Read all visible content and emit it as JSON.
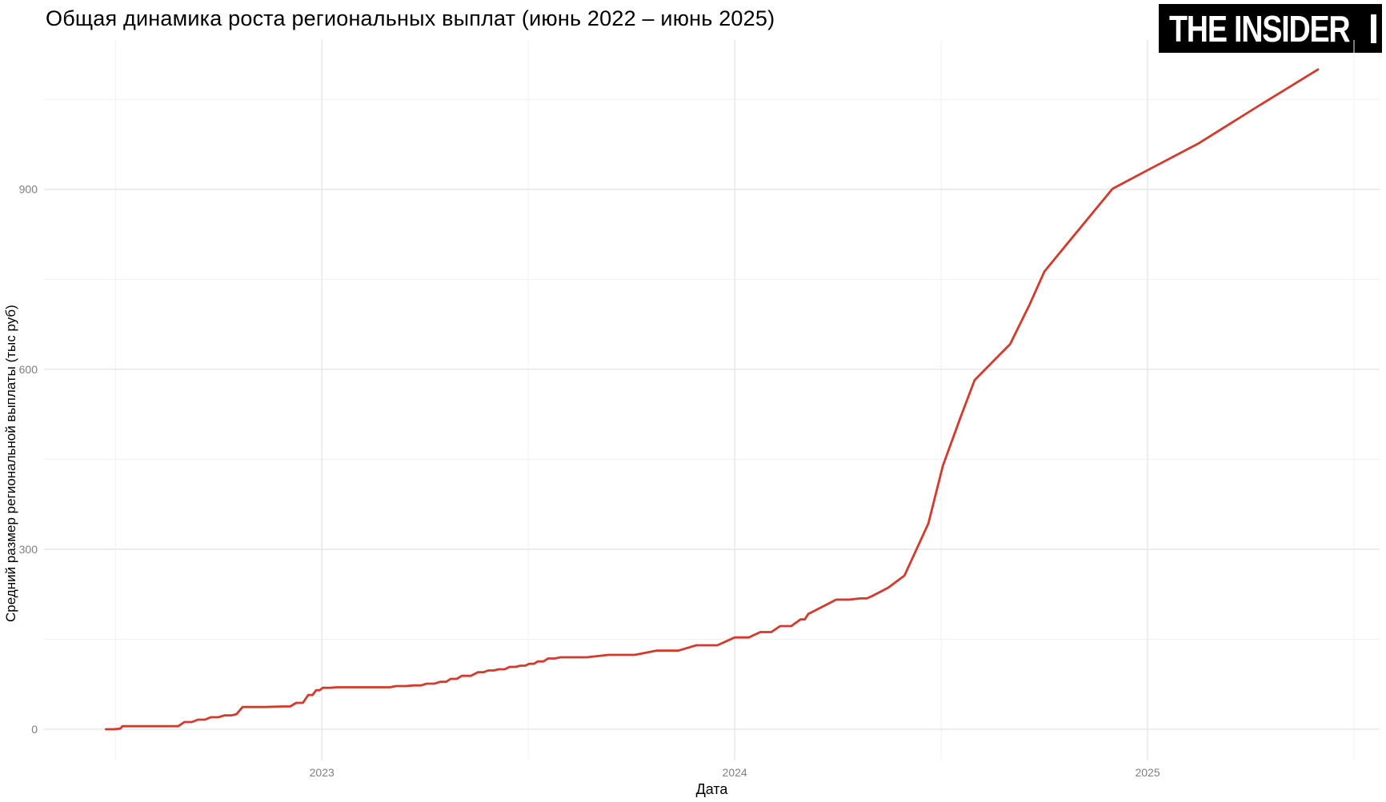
{
  "header": {
    "title": "Общая динамика роста региональных выплат (июнь 2022 – июнь 2025)",
    "logo": {
      "text": "THE INSIDER",
      "bg": "#000000",
      "fg": "#ffffff"
    }
  },
  "chart_data": {
    "type": "line",
    "title": "Общая динамика роста региональных выплат (июнь 2022 – июнь 2025)",
    "xlabel": "Дата",
    "ylabel": "Средний размер региональной выплаты (тыс руб)",
    "legend_position": "none",
    "grid": true,
    "x_range": [
      2022.327,
      2025.562
    ],
    "y_range": [
      -52,
      1149
    ],
    "x_ticks": [
      {
        "value": 2023,
        "label": "2023"
      },
      {
        "value": 2024,
        "label": "2024"
      },
      {
        "value": 2025,
        "label": "2025"
      }
    ],
    "x_minor_ticks": [
      2022.5,
      2023.5,
      2024.5,
      2025.5
    ],
    "y_ticks": [
      {
        "value": 0,
        "label": "0"
      },
      {
        "value": 300,
        "label": "300"
      },
      {
        "value": 600,
        "label": "600"
      },
      {
        "value": 900,
        "label": "900"
      }
    ],
    "y_minor_ticks": [
      150,
      450,
      750,
      1050
    ],
    "series": [
      {
        "color": "#d5392b",
        "width": 2.8,
        "points": [
          [
            2022.477,
            0
          ],
          [
            2022.512,
            1
          ],
          [
            2022.517,
            5
          ],
          [
            2022.634,
            5
          ],
          [
            2022.667,
            12
          ],
          [
            2022.7,
            16
          ],
          [
            2022.731,
            20
          ],
          [
            2022.764,
            23
          ],
          [
            2022.793,
            25
          ],
          [
            2022.808,
            37
          ],
          [
            2022.905,
            38
          ],
          [
            2022.938,
            44
          ],
          [
            2022.967,
            57
          ],
          [
            2022.986,
            65
          ],
          [
            2023.002,
            69
          ],
          [
            2023.035,
            70
          ],
          [
            2023.165,
            70
          ],
          [
            2023.18,
            72
          ],
          [
            2023.223,
            73
          ],
          [
            2023.254,
            76
          ],
          [
            2023.287,
            79
          ],
          [
            2023.312,
            84
          ],
          [
            2023.339,
            89
          ],
          [
            2023.378,
            95
          ],
          [
            2023.403,
            98
          ],
          [
            2023.428,
            100
          ],
          [
            2023.455,
            104
          ],
          [
            2023.481,
            106
          ],
          [
            2023.502,
            109
          ],
          [
            2023.523,
            113
          ],
          [
            2023.548,
            118
          ],
          [
            2023.578,
            120
          ],
          [
            2023.694,
            124
          ],
          [
            2023.81,
            131
          ],
          [
            2023.907,
            140
          ],
          [
            2024.0,
            153
          ],
          [
            2024.062,
            162
          ],
          [
            2024.11,
            172
          ],
          [
            2024.159,
            183
          ],
          [
            2024.178,
            192
          ],
          [
            2024.246,
            216
          ],
          [
            2024.304,
            218
          ],
          [
            2024.333,
            222
          ],
          [
            2024.372,
            236
          ],
          [
            2024.411,
            256
          ],
          [
            2024.469,
            343
          ],
          [
            2024.504,
            439
          ],
          [
            2024.547,
            520
          ],
          [
            2024.581,
            582
          ],
          [
            2024.624,
            612
          ],
          [
            2024.667,
            642
          ],
          [
            2024.715,
            709
          ],
          [
            2024.75,
            763
          ],
          [
            2024.818,
            820
          ],
          [
            2024.915,
            901
          ],
          [
            2025.0,
            932
          ],
          [
            2025.122,
            976
          ],
          [
            2025.264,
            1037
          ],
          [
            2025.413,
            1100
          ]
        ]
      }
    ]
  },
  "colors": {
    "background": "#ffffff",
    "line": "#d5392b",
    "grid_major": "#e4e4e4",
    "grid_minor": "#f1f1f1",
    "tick_label": "#7f7f7f",
    "text": "#000000"
  }
}
